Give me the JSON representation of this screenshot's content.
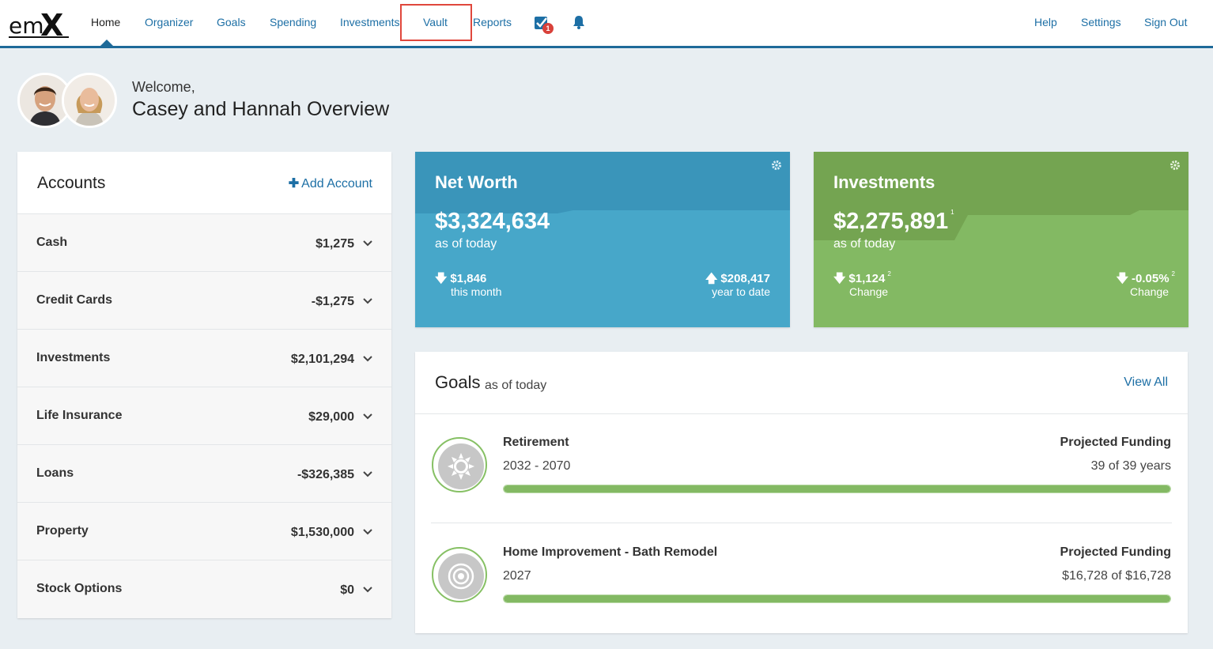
{
  "brand": {
    "logo_text": "emX"
  },
  "nav": {
    "items": [
      {
        "label": "Home"
      },
      {
        "label": "Organizer"
      },
      {
        "label": "Goals"
      },
      {
        "label": "Spending"
      },
      {
        "label": "Investments"
      },
      {
        "label": "Vault"
      },
      {
        "label": "Reports"
      }
    ],
    "active": "Home",
    "highlighted": "Vault",
    "task_badge_count": "1",
    "right_items": [
      {
        "label": "Help"
      },
      {
        "label": "Settings"
      },
      {
        "label": "Sign Out"
      }
    ]
  },
  "welcome": {
    "greeting": "Welcome,",
    "title": "Casey and Hannah Overview"
  },
  "accounts": {
    "title": "Accounts",
    "add_label": "Add Account",
    "rows": [
      {
        "name": "Cash",
        "value": "$1,275"
      },
      {
        "name": "Credit Cards",
        "value": "-$1,275"
      },
      {
        "name": "Investments",
        "value": "$2,101,294"
      },
      {
        "name": "Life Insurance",
        "value": "$29,000"
      },
      {
        "name": "Loans",
        "value": "-$326,385"
      },
      {
        "name": "Property",
        "value": "$1,530,000"
      },
      {
        "name": "Stock Options",
        "value": "$0"
      }
    ]
  },
  "net_worth": {
    "title": "Net Worth",
    "amount": "$3,324,634",
    "as_of": "as of today",
    "left_stat": "$1,846",
    "left_label": "this month",
    "right_stat": "$208,417",
    "right_label": "year to date"
  },
  "investments_tile": {
    "title": "Investments",
    "amount": "$2,275,891",
    "amount_footnote": "1",
    "as_of": "as of today",
    "left_stat": "$1,124",
    "left_footnote": "2",
    "left_label": "Change",
    "right_stat": "-0.05%",
    "right_footnote": "2",
    "right_label": "Change"
  },
  "goals": {
    "title": "Goals",
    "subtitle": "as of today",
    "view_all": "View All",
    "items": [
      {
        "name": "Retirement",
        "dates": "2032 - 2070",
        "pf_label": "Projected Funding",
        "pf_value": "39 of 39 years",
        "progress": 1.0,
        "icon": "sun-icon"
      },
      {
        "name": "Home Improvement - Bath Remodel",
        "dates": "2027",
        "pf_label": "Projected Funding",
        "pf_value": "$16,728 of $16,728",
        "progress": 1.0,
        "icon": "target-icon"
      }
    ]
  },
  "colors": {
    "nav_link": "#1d6fa5",
    "net_worth_tile": "#47a7c9",
    "investments_tile": "#83b963",
    "highlight": "#e0473c",
    "badge": "#d9413a"
  }
}
